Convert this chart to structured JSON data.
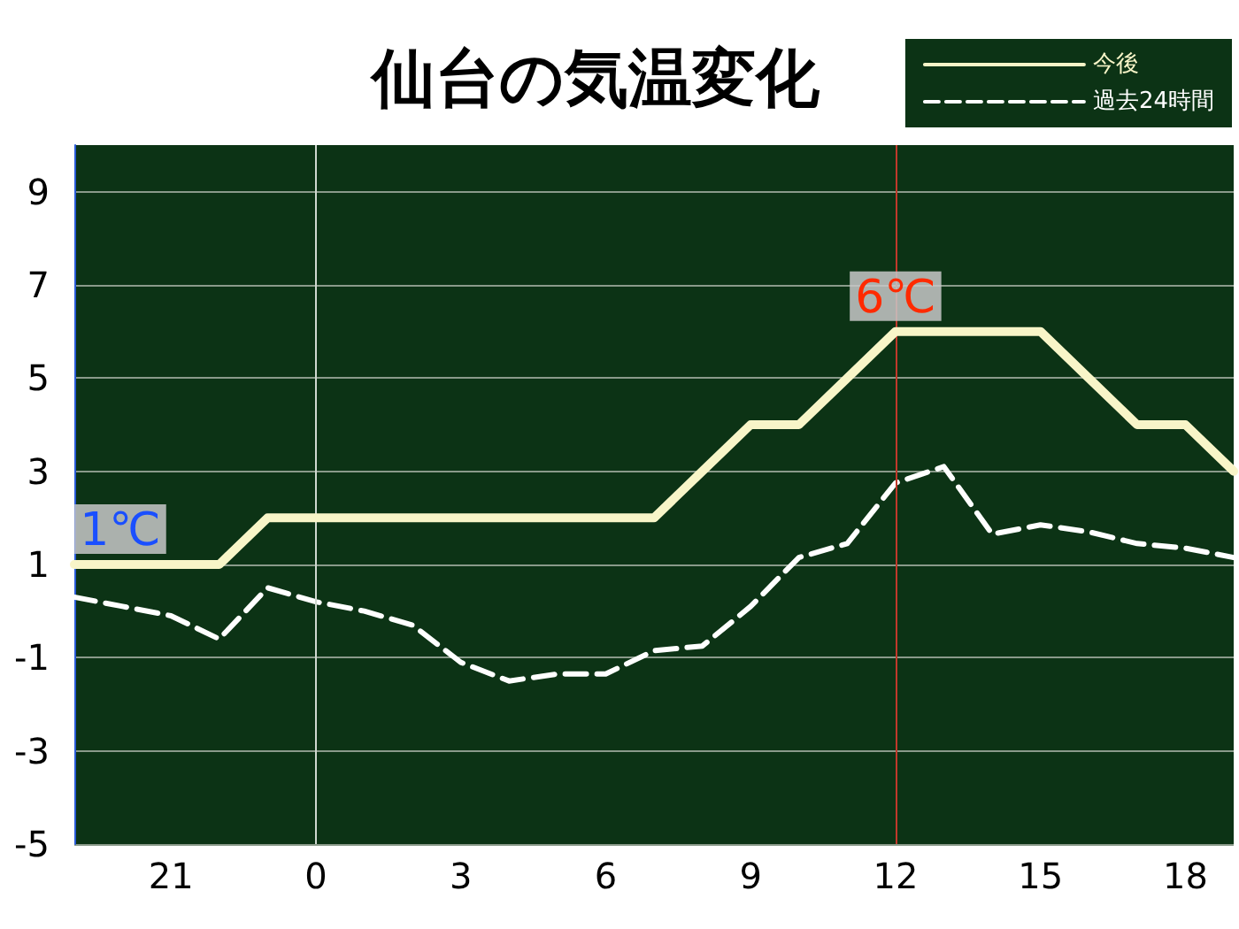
{
  "chart_data": {
    "type": "line",
    "title": "仙台の気温変化",
    "categories": [
      null,
      null,
      "21",
      null,
      null,
      "0",
      null,
      null,
      "3",
      null,
      null,
      "6",
      null,
      null,
      "9",
      null,
      null,
      "12",
      null,
      null,
      "15",
      null,
      null,
      "18",
      null
    ],
    "series": [
      {
        "name": "今後",
        "color": "#f8f5c8",
        "line_style": "solid",
        "values": [
          1,
          1,
          1,
          1,
          2,
          2,
          2,
          2,
          2,
          2,
          2,
          2,
          2,
          3,
          4,
          4,
          5,
          6,
          6,
          6,
          6,
          5,
          4,
          4,
          3
        ]
      },
      {
        "name": "過去24時間",
        "color": "#ffffff",
        "line_style": "dashed",
        "values": [
          0.3,
          0.1,
          -0.1,
          -0.6,
          0.5,
          0.2,
          0,
          -0.3,
          -1.1,
          -1.5,
          -1.35,
          -1.35,
          -0.85,
          -0.75,
          0.1,
          1.15,
          1.45,
          2.75,
          3.1,
          1.65,
          1.85,
          1.7,
          1.45,
          1.35,
          1.15
        ]
      }
    ],
    "ylim": [
      -5,
      10
    ],
    "yticks": [
      -5,
      -3,
      -1,
      1,
      3,
      5,
      7,
      9
    ],
    "grid": "y",
    "legend": "top right",
    "marker": "none",
    "ref_lines": [
      {
        "axis": "x",
        "value": "0",
        "color": "#cfd8cf"
      },
      {
        "axis": "x",
        "value": "12",
        "color": "#c0392b"
      }
    ],
    "annotations": [
      {
        "text": "1℃",
        "y": 1
      },
      {
        "text": "6℃",
        "x": "12",
        "y": 6
      }
    ]
  }
}
